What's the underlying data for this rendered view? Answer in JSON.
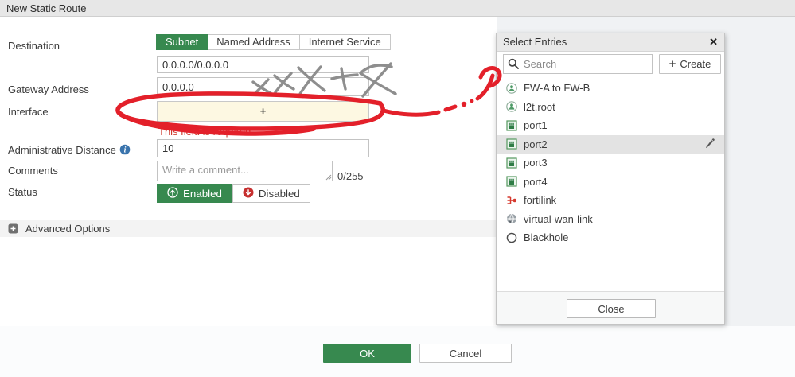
{
  "window": {
    "title": "New Static Route"
  },
  "form": {
    "destination": {
      "label": "Destination",
      "tabs": [
        "Subnet",
        "Named Address",
        "Internet Service"
      ],
      "active_tab": "Subnet",
      "subnet_value": "0.0.0.0/0.0.0.0"
    },
    "gateway": {
      "label": "Gateway Address",
      "value": "0.0.0.0"
    },
    "interface": {
      "label": "Interface",
      "add_symbol": "+",
      "error": "This field is required."
    },
    "admin_distance": {
      "label": "Administrative Distance",
      "value": "10"
    },
    "comments": {
      "label": "Comments",
      "placeholder": "Write a comment...",
      "counter": "0/255"
    },
    "status": {
      "label": "Status",
      "options": [
        "Enabled",
        "Disabled"
      ],
      "selected": "Enabled"
    },
    "advanced_options_label": "Advanced Options",
    "buttons": {
      "ok": "OK",
      "cancel": "Cancel"
    }
  },
  "select_entries_panel": {
    "title": "Select Entries",
    "search_placeholder": "Search",
    "create_label": "Create",
    "close_label": "Close",
    "entries": [
      {
        "label": "FW-A to FW-B",
        "icon": "tunnel-icon",
        "selected": false,
        "editable": false
      },
      {
        "label": "l2t.root",
        "icon": "tunnel-icon",
        "selected": false,
        "editable": false
      },
      {
        "label": "port1",
        "icon": "port-icon",
        "selected": false,
        "editable": false
      },
      {
        "label": "port2",
        "icon": "port-icon",
        "selected": true,
        "editable": true
      },
      {
        "label": "port3",
        "icon": "port-icon",
        "selected": false,
        "editable": false
      },
      {
        "label": "port4",
        "icon": "port-icon",
        "selected": false,
        "editable": false
      },
      {
        "label": "fortilink",
        "icon": "fortilink-icon",
        "selected": false,
        "editable": false
      },
      {
        "label": "virtual-wan-link",
        "icon": "wan-link-icon",
        "selected": false,
        "editable": false
      },
      {
        "label": "Blackhole",
        "icon": "blackhole-icon",
        "selected": false,
        "editable": false
      }
    ]
  },
  "colors": {
    "accent_green": "#37894f",
    "error_red": "#cf3a2e",
    "disabled_icon_red": "#c62f2f",
    "info_blue": "#3a74ad",
    "interface_field_bg": "#fdf8e2",
    "annotation_red": "#e3202a",
    "annotation_gray": "#8e8e8e",
    "panel_header_bg": "#e9e9e9"
  },
  "annotations": {
    "circle_note": "hand-drawn red ellipse around the Interface field",
    "arrow_note": "hand-drawn red dash-dot arrow pointing from Interface field to Select Entries panel",
    "x_marks_note": "five hand-drawn gray X scribbles over the Gateway Address row"
  }
}
